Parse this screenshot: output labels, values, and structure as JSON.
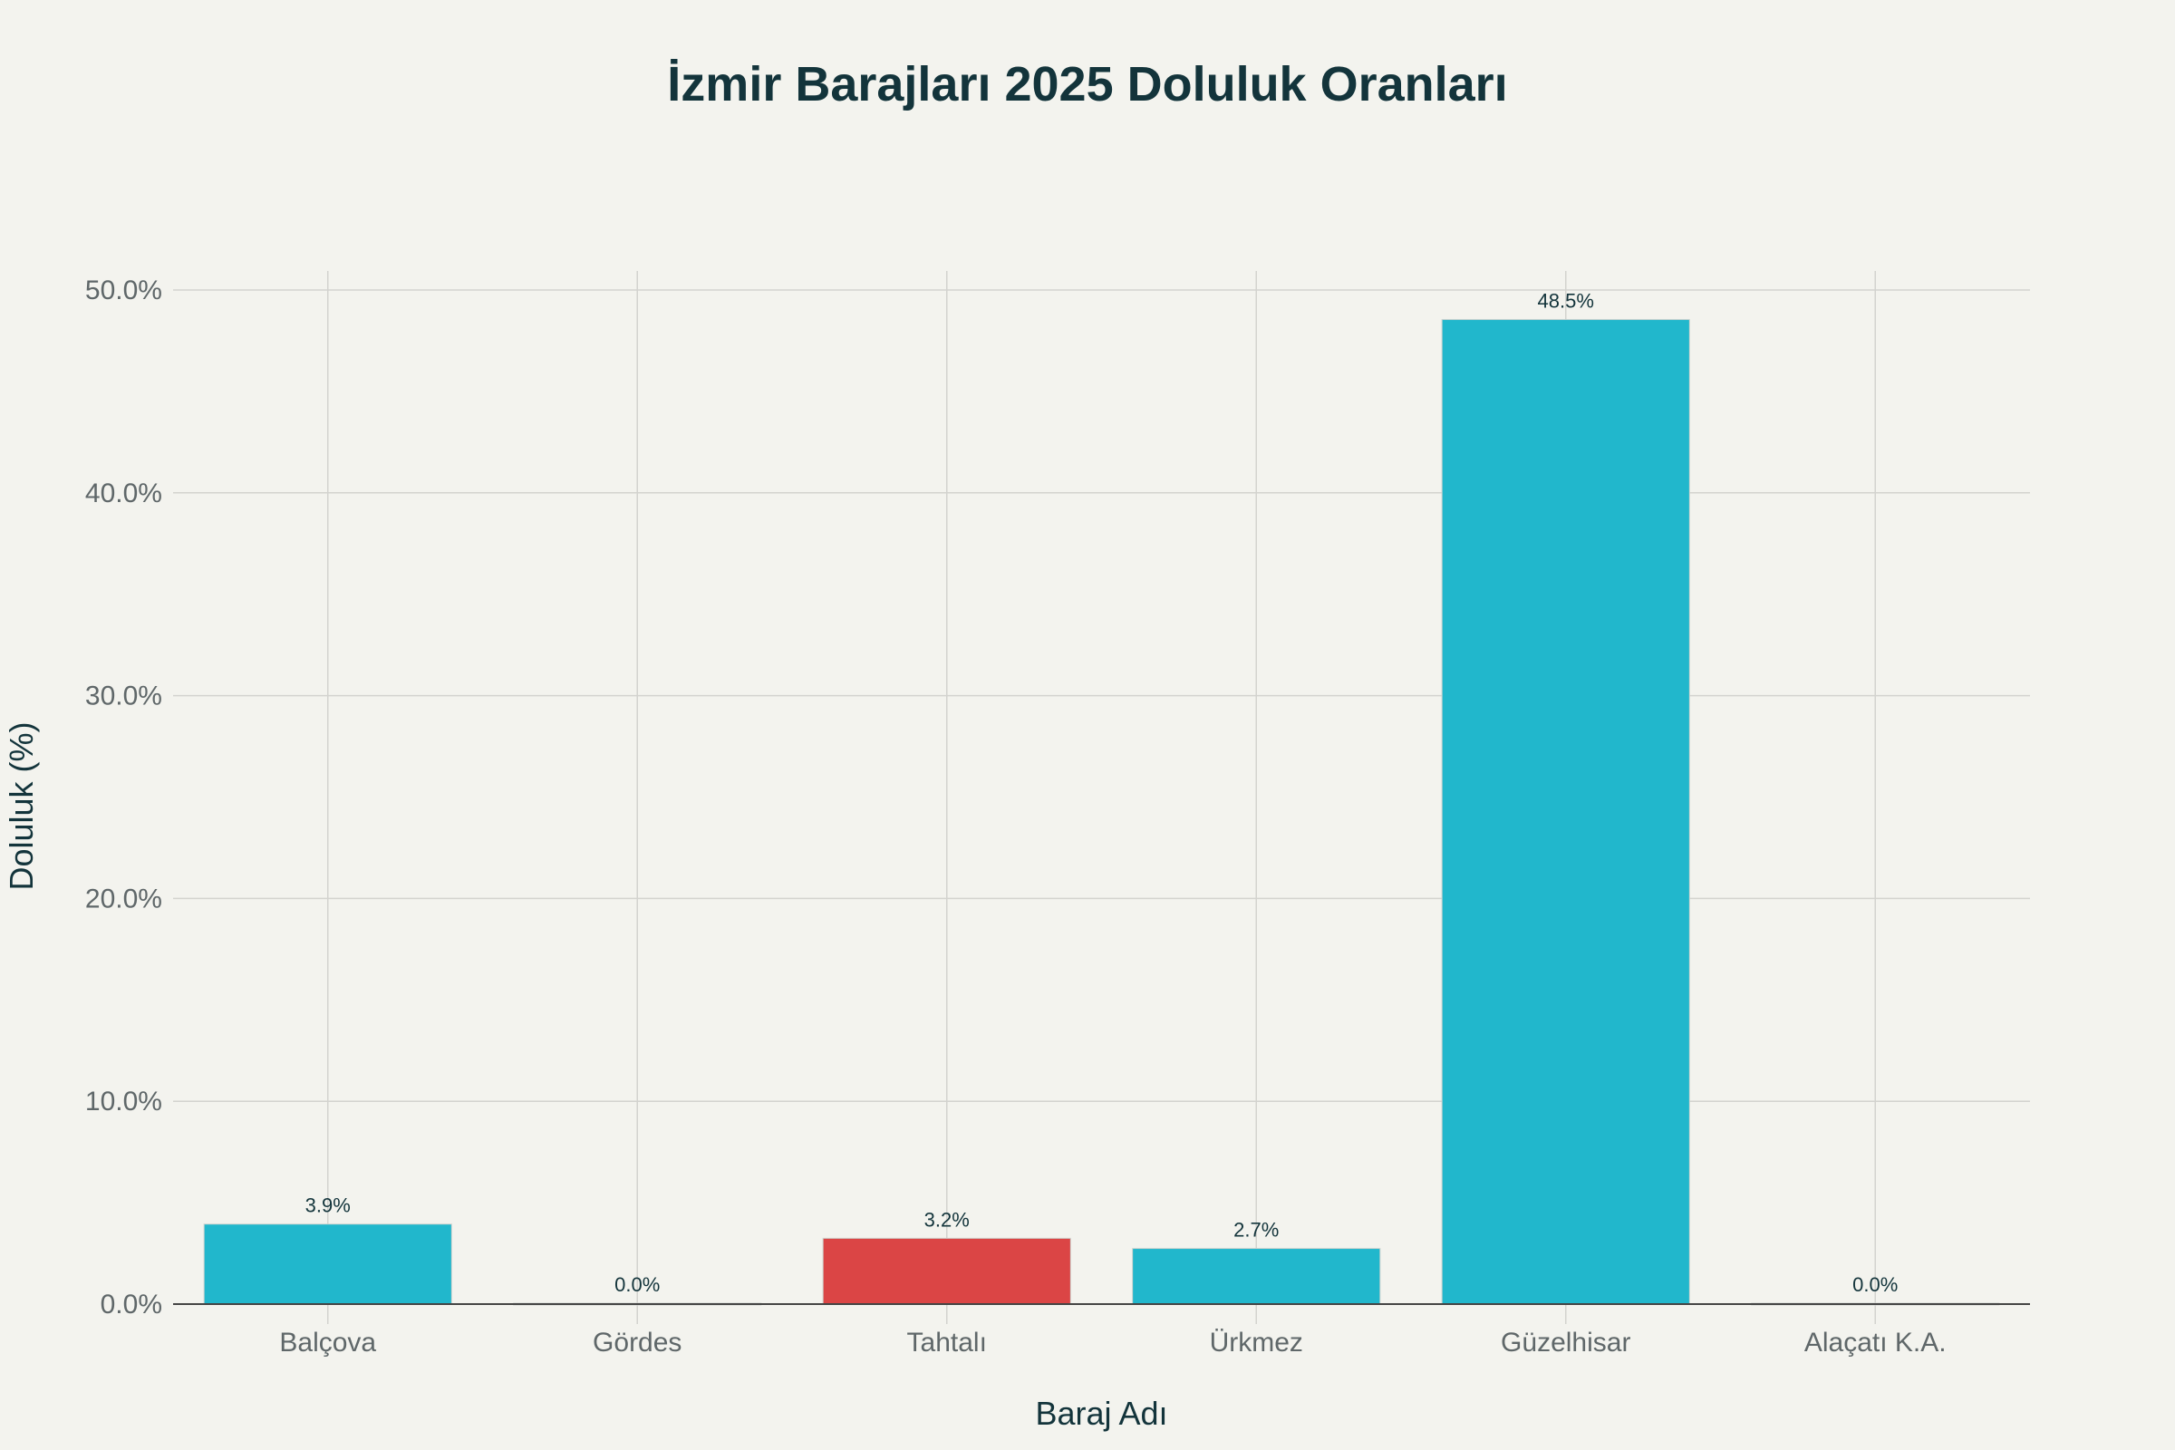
{
  "chart_data": {
    "type": "bar",
    "title": "İzmir Barajları 2025 Doluluk Oranları",
    "xlabel": "Baraj Adı",
    "ylabel": "Doluluk (%)",
    "categories": [
      "Balçova",
      "Gördes",
      "Tahtalı",
      "Ürkmez",
      "Güzelhisar",
      "Alaçatı K.A."
    ],
    "values": [
      3.9,
      0.0,
      3.2,
      2.7,
      48.5,
      0.0
    ],
    "data_labels": [
      "3.9%",
      "0.0%",
      "3.2%",
      "2.7%",
      "48.5%",
      "0.0%"
    ],
    "bar_colors": [
      "#21b7cc",
      "#21b7cc",
      "#db4545",
      "#21b7cc",
      "#21b7cc",
      "#21b7cc"
    ],
    "ylim": [
      0,
      50
    ],
    "yticks": [
      0,
      10,
      20,
      30,
      40,
      50
    ],
    "ytick_labels": [
      "0.0%",
      "10.0%",
      "20.0%",
      "30.0%",
      "40.0%",
      "50.0%"
    ],
    "grid": true,
    "legend": "none"
  }
}
